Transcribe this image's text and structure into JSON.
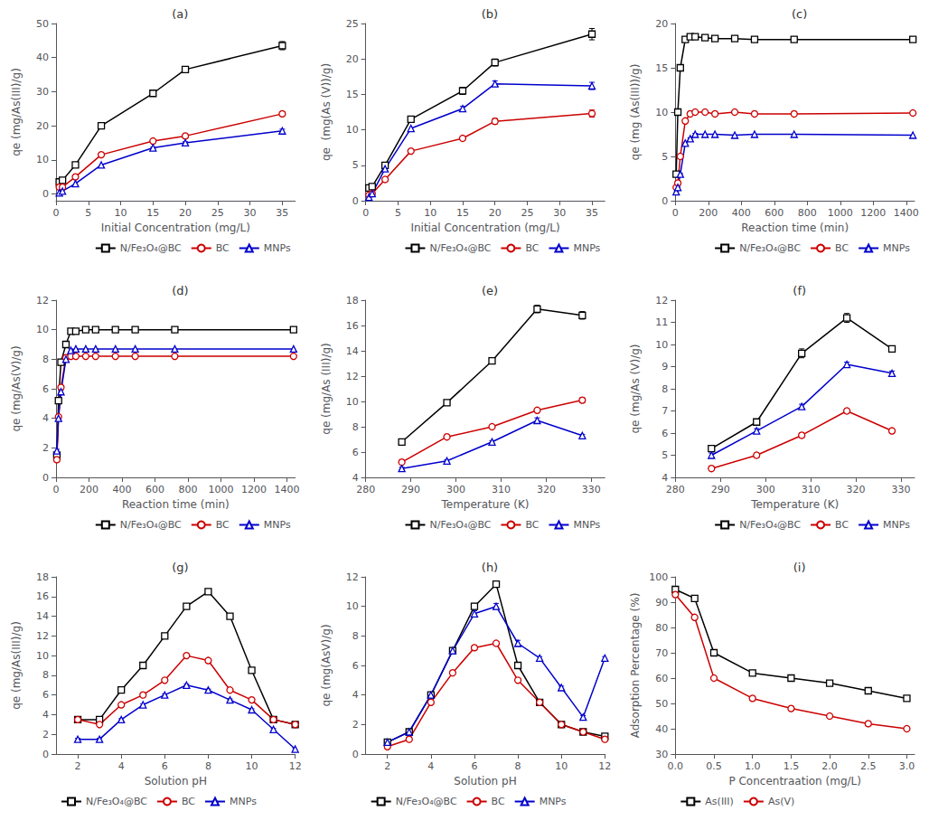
{
  "chart_data": [
    {
      "type": "line",
      "title": "(a)",
      "x_label": "Initial Concentration (mg/L)",
      "y_label": "qe (mg/As(III)/g)",
      "xlim": [
        0,
        37
      ],
      "ylim": [
        -2,
        50
      ],
      "xticks": [
        0,
        5,
        10,
        15,
        20,
        25,
        30,
        35
      ],
      "yticks": [
        0,
        10,
        20,
        30,
        40,
        50
      ],
      "grid": false,
      "legend": "lower right",
      "x": [
        0.5,
        1,
        3,
        7,
        15,
        20,
        35
      ],
      "series": [
        {
          "name": "N/Fe₃O₄@BC",
          "color": "#000000",
          "marker": "square",
          "values": [
            3.5,
            4.0,
            8.5,
            20.0,
            29.5,
            36.5,
            43.5
          ],
          "yerr": [
            0.0,
            0.0,
            0.0,
            0.0,
            0.5,
            0.5,
            1.2
          ]
        },
        {
          "name": "BC",
          "color": "#cc0000",
          "marker": "circle",
          "values": [
            2.0,
            2.0,
            5.0,
            11.5,
            15.5,
            17.0,
            23.5
          ],
          "yerr": [
            0.0,
            0.0,
            0.0,
            0.0,
            0.2,
            0.3,
            0.6
          ]
        },
        {
          "name": "MNPs",
          "color": "#0000cc",
          "marker": "triangle",
          "values": [
            0.3,
            0.8,
            3.0,
            8.5,
            13.5,
            15.0,
            18.5
          ],
          "yerr": [
            0.0,
            0.0,
            0.0,
            0.0,
            0.2,
            0.3,
            0.5
          ]
        }
      ]
    },
    {
      "type": "line",
      "title": "(b)",
      "x_label": "Initial Concentration (mg/L)",
      "y_label": "qe  (mg(As (V))/g)",
      "xlim": [
        0,
        37
      ],
      "ylim": [
        0,
        25
      ],
      "xticks": [
        0,
        5,
        10,
        15,
        20,
        25,
        30,
        35
      ],
      "yticks": [
        0,
        5,
        10,
        15,
        20,
        25
      ],
      "grid": false,
      "legend": "lower right",
      "x": [
        0.5,
        1,
        3,
        7,
        15,
        20,
        35
      ],
      "series": [
        {
          "name": "N/Fe₃O₄@BC",
          "color": "#000000",
          "marker": "square",
          "values": [
            1.8,
            2.0,
            5.0,
            11.5,
            15.5,
            19.5,
            23.5
          ],
          "yerr": [
            0.0,
            0.0,
            0.0,
            0.0,
            0.5,
            0.5,
            0.8
          ]
        },
        {
          "name": "BC",
          "color": "#cc0000",
          "marker": "circle",
          "values": [
            0.8,
            1.0,
            3.0,
            7.0,
            8.8,
            11.2,
            12.3
          ],
          "yerr": [
            0.0,
            0.0,
            0.0,
            0.0,
            0.3,
            0.4,
            0.5
          ]
        },
        {
          "name": "MNPs",
          "color": "#0000cc",
          "marker": "triangle",
          "values": [
            0.5,
            1.0,
            4.5,
            10.2,
            13.0,
            16.5,
            16.2
          ],
          "yerr": [
            0.0,
            0.0,
            0.0,
            0.0,
            0.3,
            0.4,
            0.5
          ]
        }
      ]
    },
    {
      "type": "line",
      "title": "(c)",
      "x_label": "Reaction time (min)",
      "y_label": "qe (mg (As(III))/g)",
      "xlim": [
        0,
        1450
      ],
      "ylim": [
        0,
        20
      ],
      "xticks": [
        0,
        200,
        400,
        600,
        800,
        1000,
        1200,
        1400
      ],
      "yticks": [
        0,
        5,
        10,
        15,
        20
      ],
      "grid": false,
      "legend": "lower right",
      "x": [
        5,
        15,
        30,
        60,
        90,
        120,
        180,
        240,
        360,
        480,
        720,
        1440
      ],
      "series": [
        {
          "name": "N/Fe₃O₄@BC",
          "color": "#000000",
          "marker": "square",
          "values": [
            3.0,
            10.0,
            15.0,
            18.2,
            18.5,
            18.5,
            18.4,
            18.3,
            18.3,
            18.2,
            18.2,
            18.2
          ],
          "yerr": [
            0.2,
            0.3,
            0.3,
            0.2,
            0.2,
            0.2,
            0.0,
            0.0,
            0.0,
            0.0,
            0.0,
            0.0
          ]
        },
        {
          "name": "BC",
          "color": "#cc0000",
          "marker": "circle",
          "values": [
            1.5,
            2.0,
            5.0,
            9.0,
            9.8,
            10.0,
            10.0,
            9.8,
            10.0,
            9.8,
            9.8,
            9.9
          ],
          "yerr": [
            0.1,
            0.1,
            0.1,
            0.1,
            0.1,
            0.1,
            0.0,
            0.0,
            0.0,
            0.0,
            0.0,
            0.0
          ]
        },
        {
          "name": "MNPs",
          "color": "#0000cc",
          "marker": "triangle",
          "values": [
            1.0,
            1.5,
            3.0,
            6.5,
            7.0,
            7.5,
            7.5,
            7.5,
            7.4,
            7.5,
            7.5,
            7.4
          ],
          "yerr": [
            0.1,
            0.1,
            0.1,
            0.1,
            0.1,
            0.1,
            0.0,
            0.0,
            0.0,
            0.0,
            0.0,
            0.0
          ]
        }
      ]
    },
    {
      "type": "line",
      "title": "(d)",
      "x_label": "Reaction time (min)",
      "y_label": "qe (mg/As(V)/g)",
      "xlim": [
        0,
        1450
      ],
      "ylim": [
        0,
        12
      ],
      "xticks": [
        0,
        200,
        400,
        600,
        800,
        1000,
        1200,
        1400
      ],
      "yticks": [
        0,
        2,
        4,
        6,
        8,
        10,
        12
      ],
      "grid": false,
      "legend": "lower right",
      "x": [
        5,
        15,
        30,
        60,
        90,
        120,
        180,
        240,
        360,
        480,
        720,
        1440
      ],
      "series": [
        {
          "name": "N/Fe₃O₄@BC",
          "color": "#000000",
          "marker": "square",
          "values": [
            1.5,
            5.2,
            7.8,
            9.0,
            9.9,
            9.9,
            10.0,
            10.0,
            10.0,
            10.0,
            10.0,
            10.0
          ],
          "yerr": [
            0.1,
            0.2,
            0.2,
            0.2,
            0.1,
            0.0,
            0.0,
            0.0,
            0.0,
            0.0,
            0.0,
            0.0
          ]
        },
        {
          "name": "BC",
          "color": "#cc0000",
          "marker": "circle",
          "values": [
            1.2,
            4.1,
            6.1,
            8.1,
            8.2,
            8.2,
            8.2,
            8.2,
            8.2,
            8.2,
            8.2,
            8.2
          ],
          "yerr": [
            0.1,
            0.1,
            0.1,
            0.1,
            0.1,
            0.0,
            0.0,
            0.0,
            0.0,
            0.0,
            0.0,
            0.0
          ]
        },
        {
          "name": "MNPs",
          "color": "#0000cc",
          "marker": "triangle",
          "values": [
            1.8,
            4.0,
            5.8,
            8.0,
            8.6,
            8.7,
            8.7,
            8.7,
            8.7,
            8.7,
            8.7,
            8.7
          ],
          "yerr": [
            0.1,
            0.1,
            0.1,
            0.1,
            0.1,
            0.0,
            0.0,
            0.0,
            0.0,
            0.0,
            0.0,
            0.0
          ]
        }
      ]
    },
    {
      "type": "line",
      "title": "(e)",
      "x_label": "Temperature (K)",
      "y_label": "qe (mg/As (III)/g)",
      "xlim": [
        280,
        333
      ],
      "ylim": [
        4,
        18
      ],
      "xticks": [
        280,
        290,
        300,
        310,
        320,
        330
      ],
      "yticks": [
        4,
        6,
        8,
        10,
        12,
        14,
        16,
        18
      ],
      "grid": false,
      "legend": "lower right",
      "x": [
        288,
        298,
        308,
        318,
        328
      ],
      "series": [
        {
          "name": "N/Fe₃O₄@BC",
          "color": "#000000",
          "marker": "square",
          "values": [
            6.8,
            9.9,
            13.2,
            17.3,
            16.8
          ],
          "yerr": [
            0.1,
            0.2,
            0.2,
            0.3,
            0.3
          ]
        },
        {
          "name": "BC",
          "color": "#cc0000",
          "marker": "circle",
          "values": [
            5.2,
            7.2,
            8.0,
            9.3,
            10.1
          ],
          "yerr": [
            0.1,
            0.1,
            0.1,
            0.1,
            0.2
          ]
        },
        {
          "name": "MNPs",
          "color": "#0000cc",
          "marker": "triangle",
          "values": [
            4.7,
            5.3,
            6.8,
            8.5,
            7.3
          ],
          "yerr": [
            0.1,
            0.1,
            0.1,
            0.2,
            0.1
          ]
        }
      ]
    },
    {
      "type": "line",
      "title": "(f)",
      "x_label": "Temperature (K)",
      "y_label": "qe (mg/As (V)/g)",
      "xlim": [
        280,
        333
      ],
      "ylim": [
        4,
        12
      ],
      "xticks": [
        280,
        290,
        300,
        310,
        320,
        330
      ],
      "yticks": [
        4,
        5,
        6,
        7,
        8,
        9,
        10,
        11,
        12
      ],
      "grid": false,
      "legend": "lower right",
      "x": [
        288,
        298,
        308,
        318,
        328
      ],
      "series": [
        {
          "name": "N/Fe₃O₄@BC",
          "color": "#000000",
          "marker": "square",
          "values": [
            5.3,
            6.5,
            9.6,
            11.2,
            9.8
          ],
          "yerr": [
            0.1,
            0.1,
            0.2,
            0.2,
            0.1
          ]
        },
        {
          "name": "BC",
          "color": "#cc0000",
          "marker": "circle",
          "values": [
            4.4,
            5.0,
            5.9,
            7.0,
            6.1
          ],
          "yerr": [
            0.1,
            0.1,
            0.1,
            0.1,
            0.1
          ]
        },
        {
          "name": "MNPs",
          "color": "#0000cc",
          "marker": "triangle",
          "values": [
            5.0,
            6.1,
            7.2,
            9.1,
            8.7
          ],
          "yerr": [
            0.1,
            0.1,
            0.1,
            0.1,
            0.1
          ]
        }
      ]
    },
    {
      "type": "line",
      "title": "(g)",
      "x_label": "Solution pH",
      "y_label": "qe (mg/As(III)/g)",
      "xlim": [
        1,
        12
      ],
      "ylim": [
        0,
        18
      ],
      "xticks": [
        2,
        4,
        6,
        8,
        10,
        12
      ],
      "yticks": [
        0,
        2,
        4,
        6,
        8,
        10,
        12,
        14,
        16,
        18
      ],
      "grid": false,
      "legend": "lower left",
      "x": [
        2,
        3,
        4,
        5,
        6,
        7,
        8,
        9,
        10,
        11,
        12
      ],
      "series": [
        {
          "name": "N/Fe₃O₄@BC",
          "color": "#000000",
          "marker": "square",
          "values": [
            3.5,
            3.5,
            6.5,
            9.0,
            12.0,
            15.0,
            16.5,
            14.0,
            8.5,
            3.5,
            3.0
          ],
          "yerr": [
            0.1,
            0.1,
            0.1,
            0.1,
            0.2,
            0.2,
            0.2,
            0.2,
            0.1,
            0.1,
            0.1
          ]
        },
        {
          "name": "BC",
          "color": "#cc0000",
          "marker": "circle",
          "values": [
            3.5,
            3.0,
            5.0,
            6.0,
            7.5,
            10.0,
            9.5,
            6.5,
            5.5,
            3.5,
            3.0
          ],
          "yerr": [
            0.1,
            0.1,
            0.1,
            0.1,
            0.1,
            0.1,
            0.1,
            0.1,
            0.1,
            0.1,
            0.1
          ]
        },
        {
          "name": "MNPs",
          "color": "#0000cc",
          "marker": "triangle",
          "values": [
            1.5,
            1.5,
            3.5,
            5.0,
            6.0,
            7.0,
            6.5,
            5.5,
            4.5,
            2.5,
            0.5
          ],
          "yerr": [
            0.1,
            0.1,
            0.1,
            0.1,
            0.1,
            0.1,
            0.1,
            0.1,
            0.1,
            0.1,
            0.1
          ]
        }
      ]
    },
    {
      "type": "line",
      "title": "(h)",
      "x_label": "Solution pH",
      "y_label": "qe (mg(AsV)/g)",
      "xlim": [
        1,
        12
      ],
      "ylim": [
        0,
        12
      ],
      "xticks": [
        2,
        4,
        6,
        8,
        10,
        12
      ],
      "yticks": [
        0,
        2,
        4,
        6,
        8,
        10,
        12
      ],
      "grid": false,
      "legend": "lower left",
      "x": [
        2,
        3,
        4,
        5,
        6,
        7,
        8,
        9,
        10,
        11,
        12
      ],
      "series": [
        {
          "name": "N/Fe₃O₄@BC",
          "color": "#000000",
          "marker": "square",
          "values": [
            0.8,
            1.5,
            4.0,
            7.0,
            10.0,
            11.5,
            6.0,
            3.5,
            2.0,
            1.5,
            1.2
          ],
          "yerr": [
            0.1,
            0.1,
            0.1,
            0.2,
            0.2,
            0.2,
            0.2,
            0.1,
            0.1,
            0.1,
            0.1
          ]
        },
        {
          "name": "BC",
          "color": "#cc0000",
          "marker": "circle",
          "values": [
            0.5,
            1.0,
            3.5,
            5.5,
            7.2,
            7.5,
            5.0,
            3.5,
            2.0,
            1.5,
            1.0
          ],
          "yerr": [
            0.1,
            0.1,
            0.1,
            0.1,
            0.1,
            0.1,
            0.1,
            0.1,
            0.1,
            0.1,
            0.1
          ]
        },
        {
          "name": "MNPs",
          "color": "#0000cc",
          "marker": "triangle",
          "values": [
            0.8,
            1.5,
            4.0,
            7.0,
            9.5,
            10.0,
            7.5,
            6.5,
            4.5,
            2.5,
            6.5
          ],
          "yerr": [
            0.1,
            0.1,
            0.1,
            0.1,
            0.2,
            0.2,
            0.2,
            0.1,
            0.1,
            0.1,
            0.1
          ]
        }
      ]
    },
    {
      "type": "line",
      "title": "(i)",
      "x_label": "P Concentraation (mg/L)",
      "y_label": "Adsorption Percentage (%)",
      "xlim": [
        0,
        3.1
      ],
      "ylim": [
        30,
        100
      ],
      "xticks": [
        {
          "value": 0,
          "label": "0.0"
        },
        0.5,
        {
          "value": 1,
          "label": "1.0"
        },
        1.5,
        {
          "value": 2,
          "label": "2.0"
        },
        2.5,
        {
          "value": 3,
          "label": "3.0"
        }
      ],
      "yticks": [
        30,
        40,
        50,
        60,
        70,
        80,
        90,
        100
      ],
      "grid": false,
      "legend": "lower left",
      "x": [
        0.0,
        0.25,
        0.5,
        1.0,
        1.5,
        2.0,
        2.5,
        3.0
      ],
      "series": [
        {
          "name": "As(III)",
          "color": "#000000",
          "marker": "square",
          "values": [
            95.0,
            91.5,
            70.0,
            62.0,
            60.0,
            58.0,
            55.0,
            52.0
          ],
          "yerr": [
            0.5,
            0.5,
            0.5,
            0.5,
            0.5,
            0.5,
            0.5,
            0.5
          ]
        },
        {
          "name": "As(V)",
          "color": "#cc0000",
          "marker": "circle",
          "values": [
            93.0,
            84.0,
            60.0,
            52.0,
            48.0,
            45.0,
            42.0,
            40.0
          ],
          "yerr": [
            0.5,
            0.5,
            0.5,
            0.5,
            0.5,
            0.5,
            0.5,
            0.5
          ]
        }
      ]
    }
  ]
}
